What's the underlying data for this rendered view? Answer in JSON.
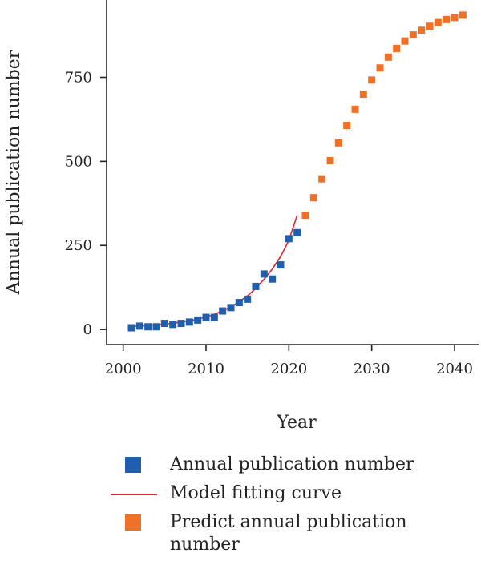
{
  "chart_data": {
    "type": "scatter",
    "xlabel": "Year",
    "ylabel": "Annual publication number",
    "xlim": [
      1998,
      2043
    ],
    "ylim": [
      -45,
      980
    ],
    "xticks": [
      2000,
      2010,
      2020,
      2030,
      2040
    ],
    "yticks": [
      0,
      250,
      500,
      750
    ],
    "grid": false,
    "legend_position": "bottom",
    "series": [
      {
        "name": "Annual publication number",
        "kind": "scatter",
        "color": "#1f5fad",
        "x": [
          2001,
          2002,
          2003,
          2004,
          2005,
          2006,
          2007,
          2008,
          2009,
          2010,
          2011,
          2012,
          2013,
          2014,
          2015,
          2016,
          2017,
          2018,
          2019,
          2020,
          2021
        ],
        "y": [
          5,
          10,
          8,
          8,
          18,
          15,
          18,
          22,
          28,
          36,
          36,
          55,
          65,
          80,
          90,
          128,
          165,
          150,
          192,
          270,
          288
        ]
      },
      {
        "name": "Model fitting curve",
        "kind": "line",
        "color": "#e4232b",
        "x": [
          2001,
          2002,
          2003,
          2004,
          2005,
          2006,
          2007,
          2008,
          2009,
          2010,
          2011,
          2012,
          2013,
          2014,
          2015,
          2016,
          2017,
          2018,
          2019,
          2020,
          2021
        ],
        "y": [
          9,
          10,
          12,
          14,
          16,
          19,
          22,
          26,
          31,
          37,
          45,
          55,
          67,
          82,
          100,
          122,
          149,
          180,
          217,
          265,
          340
        ]
      },
      {
        "name": "Predict annual publication number",
        "kind": "scatter",
        "color": "#f07028",
        "x": [
          2022,
          2023,
          2024,
          2025,
          2026,
          2027,
          2028,
          2029,
          2030,
          2031,
          2032,
          2033,
          2034,
          2035,
          2036,
          2037,
          2038,
          2039,
          2040,
          2041
        ],
        "y": [
          340,
          392,
          448,
          502,
          555,
          607,
          655,
          700,
          742,
          778,
          810,
          836,
          858,
          876,
          890,
          902,
          913,
          922,
          928,
          935
        ]
      }
    ]
  }
}
